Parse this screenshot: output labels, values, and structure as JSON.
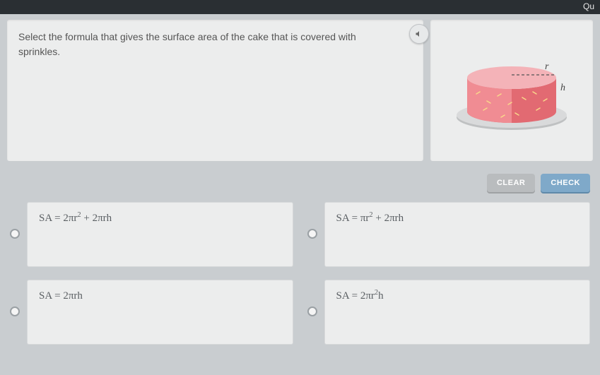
{
  "topbar": {
    "label": "Qu"
  },
  "question": {
    "text": "Select the formula that gives the surface area of the cake that is covered with sprinkles."
  },
  "diagram": {
    "labels": {
      "radius": "r",
      "height": "h"
    },
    "colors": {
      "top": "#f4b3b8",
      "side_light": "#f08c93",
      "side_dark": "#e26a72",
      "plate": "#d9dadb",
      "plate_edge": "#bfc1c2",
      "sprinkle": "#f9d98a"
    }
  },
  "buttons": {
    "clear": "CLEAR",
    "check": "CHECK"
  },
  "options": {
    "a": {
      "prefix": "SA = ",
      "formula_html": "2πr<sup>2</sup> + 2πrh"
    },
    "b": {
      "prefix": "SA = ",
      "formula_html": "πr<sup>2</sup> + 2πrh"
    },
    "c": {
      "prefix": "SA = ",
      "formula_html": "2πrh"
    },
    "d": {
      "prefix": "SA = ",
      "formula_html": "2πr<sup>2</sup>h"
    }
  },
  "styles": {
    "page_bg": "#c9cdd0",
    "panel_bg": "#eceded",
    "text_color": "#555",
    "option_text": "#5a5f63",
    "clear_bg": "#b9bcbe",
    "check_bg": "#7fa9c9"
  }
}
